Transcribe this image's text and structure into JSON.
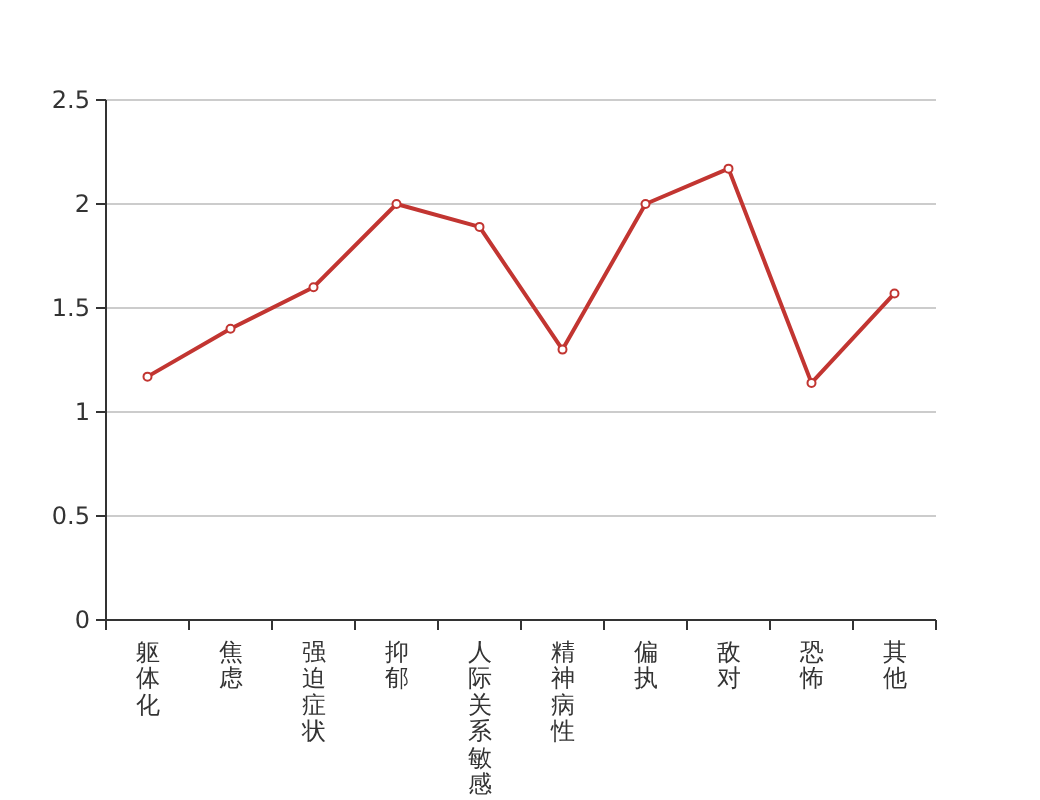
{
  "chart_data": {
    "type": "line",
    "categories": [
      "躯体化",
      "焦虑",
      "强迫症状",
      "抑郁",
      "人际关系敏感",
      "精神病性",
      "偏执",
      "敌对",
      "恐怖",
      "其他"
    ],
    "series": [
      {
        "color": "#c23531",
        "values": [
          1.17,
          1.4,
          1.6,
          2.0,
          1.89,
          1.3,
          2.0,
          2.17,
          1.14,
          1.57
        ]
      }
    ],
    "ylim": [
      0,
      2.5
    ],
    "yticks": [
      0,
      0.5,
      1,
      1.5,
      2,
      2.5
    ],
    "grid": "y",
    "marker": "circle",
    "line_style": "solid"
  }
}
